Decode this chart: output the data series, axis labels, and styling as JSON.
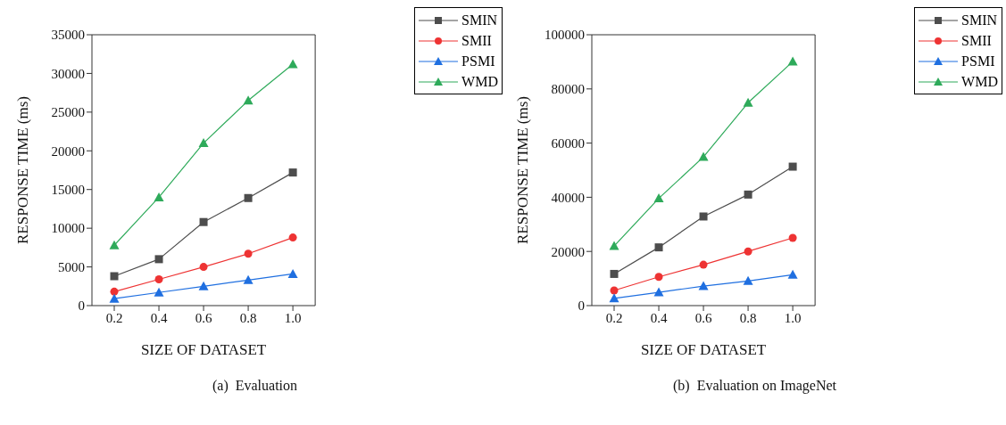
{
  "chart_data": [
    {
      "type": "line",
      "xlabel": "SIZE OF DATASET",
      "ylabel": "RESPONSE TIME (ms)",
      "x": [
        0.2,
        0.4,
        0.6,
        0.8,
        1.0
      ],
      "xlim": [
        0.1,
        1.1
      ],
      "xticks": [
        {
          "value": 0.2,
          "label": "0.2"
        },
        {
          "value": 0.4,
          "label": "0.4"
        },
        {
          "value": 0.6,
          "label": "0.6"
        },
        {
          "value": 0.8,
          "label": "0.8"
        },
        {
          "value": 1.0,
          "label": "1.0"
        }
      ],
      "ylim": [
        0,
        35000
      ],
      "yticks": [
        0,
        5000,
        10000,
        15000,
        20000,
        25000,
        30000,
        35000
      ],
      "grid": false,
      "legend": "top right",
      "line_style": "solid",
      "annotations": [
        "(a)  Evaluation"
      ],
      "series": [
        {
          "name": "SMIN",
          "color": "#4d4d4d",
          "marker": "square",
          "values": [
            3800,
            6000,
            10800,
            13900,
            17200
          ]
        },
        {
          "name": "SMII",
          "color": "#ee3333",
          "marker": "circle",
          "values": [
            1800,
            3400,
            5000,
            6700,
            8800
          ]
        },
        {
          "name": "PSMI",
          "color": "#1f6fe0",
          "marker": "triangle",
          "values": [
            900,
            1700,
            2500,
            3300,
            4100
          ]
        },
        {
          "name": "WMD",
          "color": "#2eaa5a",
          "marker": "triangle",
          "values": [
            7800,
            14000,
            21000,
            26500,
            31200
          ]
        }
      ]
    },
    {
      "type": "line",
      "xlabel": "SIZE OF DATASET",
      "ylabel": "RESPONSE TIME (ms)",
      "x": [
        0.2,
        0.4,
        0.6,
        0.8,
        1.0
      ],
      "xlim": [
        0.1,
        1.1
      ],
      "xticks": [
        {
          "value": 0.2,
          "label": "0.2"
        },
        {
          "value": 0.4,
          "label": "0.4"
        },
        {
          "value": 0.6,
          "label": "0.6"
        },
        {
          "value": 0.8,
          "label": "0.8"
        },
        {
          "value": 1.0,
          "label": "1.0"
        }
      ],
      "ylim": [
        0,
        100000
      ],
      "yticks": [
        0,
        20000,
        40000,
        60000,
        80000,
        100000
      ],
      "grid": false,
      "legend": "top right",
      "line_style": "solid",
      "annotations": [
        "(b)  Evaluation on ImageNet"
      ],
      "series": [
        {
          "name": "SMIN",
          "color": "#4d4d4d",
          "marker": "square",
          "values": [
            11700,
            21500,
            32900,
            41000,
            51300
          ]
        },
        {
          "name": "SMII",
          "color": "#ee3333",
          "marker": "circle",
          "values": [
            5600,
            10600,
            15100,
            20000,
            25000
          ]
        },
        {
          "name": "PSMI",
          "color": "#1f6fe0",
          "marker": "triangle",
          "values": [
            2700,
            4900,
            7200,
            9100,
            11400
          ]
        },
        {
          "name": "WMD",
          "color": "#2eaa5a",
          "marker": "triangle",
          "values": [
            22000,
            39600,
            54900,
            74900,
            90100
          ]
        }
      ]
    }
  ]
}
